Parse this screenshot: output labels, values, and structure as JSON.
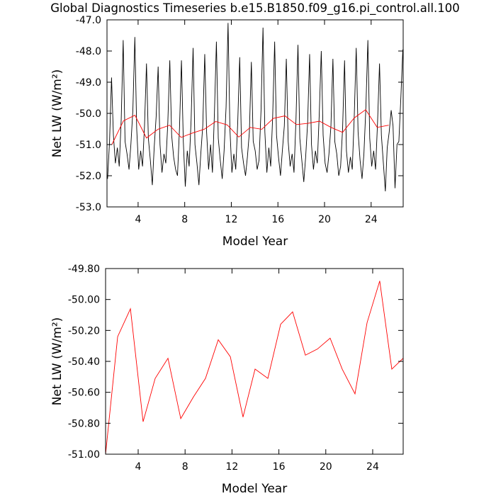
{
  "chart_data": [
    {
      "type": "line",
      "title": "Global Diagnostics Timeseries b.e15.B1850.f09_g16.pi_control.all.100",
      "xlabel": "Model Year",
      "ylabel": "Net LW (W/m²)",
      "xlim": [
        1.33,
        26.75
      ],
      "xticks": [
        4,
        8,
        12,
        16,
        20,
        24
      ],
      "ylim": [
        -53,
        -47
      ],
      "yticks": [
        {
          "value": -53,
          "label": "-53.0"
        },
        {
          "value": -52,
          "label": "-52.0"
        },
        {
          "value": -51,
          "label": "-51.0"
        },
        {
          "value": -50,
          "label": "-50.0"
        },
        {
          "value": -49,
          "label": "-49.0"
        },
        {
          "value": -48,
          "label": "-48.0"
        },
        {
          "value": -47,
          "label": "-47.0"
        }
      ],
      "series": [
        {
          "color": "#000000",
          "x": [
            1.38,
            1.55,
            1.72,
            1.88,
            2.05,
            2.22,
            2.38,
            2.55,
            2.72,
            2.88,
            3.05,
            3.22,
            3.38,
            3.55,
            3.72,
            3.88,
            4.05,
            4.22,
            4.38,
            4.55,
            4.72,
            4.88,
            5.05,
            5.22,
            5.38,
            5.55,
            5.72,
            5.88,
            6.05,
            6.22,
            6.38,
            6.55,
            6.72,
            6.88,
            7.05,
            7.22,
            7.38,
            7.55,
            7.72,
            7.88,
            8.05,
            8.22,
            8.38,
            8.55,
            8.72,
            8.88,
            9.05,
            9.22,
            9.38,
            9.55,
            9.72,
            9.88,
            10.05,
            10.22,
            10.38,
            10.55,
            10.72,
            10.88,
            11.05,
            11.22,
            11.38,
            11.55,
            11.72,
            11.88,
            12.05,
            12.22,
            12.38,
            12.55,
            12.72,
            12.88,
            13.05,
            13.22,
            13.38,
            13.55,
            13.72,
            13.88,
            14.05,
            14.22,
            14.38,
            14.55,
            14.72,
            14.88,
            15.05,
            15.22,
            15.38,
            15.55,
            15.72,
            15.88,
            16.05,
            16.22,
            16.38,
            16.55,
            16.72,
            16.88,
            17.05,
            17.22,
            17.38,
            17.55,
            17.72,
            17.88,
            18.05,
            18.22,
            18.38,
            18.55,
            18.72,
            18.88,
            19.05,
            19.22,
            19.38,
            19.55,
            19.72,
            19.88,
            20.05,
            20.22,
            20.38,
            20.55,
            20.72,
            20.88,
            21.05,
            21.22,
            21.38,
            21.55,
            21.72,
            21.88,
            22.05,
            22.22,
            22.38,
            22.55,
            22.72,
            22.88,
            23.05,
            23.22,
            23.38,
            23.55,
            23.72,
            23.88,
            24.05,
            24.22,
            24.38,
            24.55,
            24.72,
            24.88,
            25.05,
            25.22,
            25.38,
            25.55,
            25.72,
            25.88,
            26.05,
            26.22,
            26.38,
            26.55,
            26.72
          ],
          "values": [
            -52.1,
            -50.9,
            -48.85,
            -50.7,
            -51.6,
            -51.1,
            -51.7,
            -50.2,
            -47.65,
            -50.9,
            -51.3,
            -51.8,
            -51.0,
            -49.9,
            -47.55,
            -50.5,
            -51.8,
            -51.2,
            -51.7,
            -50.4,
            -48.4,
            -50.8,
            -51.5,
            -52.3,
            -51.1,
            -50.1,
            -48.5,
            -51.0,
            -51.9,
            -51.3,
            -51.6,
            -50.3,
            -48.3,
            -50.7,
            -51.4,
            -51.8,
            -52.0,
            -50.5,
            -48.3,
            -50.9,
            -52.35,
            -51.2,
            -51.7,
            -50.2,
            -47.9,
            -51.0,
            -51.6,
            -52.3,
            -51.3,
            -50.4,
            -48.1,
            -50.6,
            -51.8,
            -51.0,
            -51.9,
            -50.0,
            -47.7,
            -50.8,
            -51.5,
            -52.1,
            -51.2,
            -49.8,
            -47.1,
            -50.5,
            -51.9,
            -51.3,
            -51.8,
            -50.3,
            -48.2,
            -51.1,
            -51.6,
            -52.0,
            -51.4,
            -50.6,
            -48.35,
            -50.9,
            -51.2,
            -51.8,
            -51.5,
            -49.9,
            -47.25,
            -50.6,
            -51.9,
            -51.1,
            -51.7,
            -50.1,
            -47.7,
            -50.7,
            -51.4,
            -52.0,
            -51.2,
            -50.4,
            -48.25,
            -50.9,
            -51.7,
            -51.3,
            -51.9,
            -50.2,
            -47.8,
            -50.8,
            -51.5,
            -52.2,
            -51.4,
            -50.3,
            -48.1,
            -51.0,
            -51.8,
            -51.2,
            -51.6,
            -50.0,
            -48.0,
            -50.7,
            -51.6,
            -51.9,
            -51.3,
            -50.4,
            -48.25,
            -50.9,
            -51.3,
            -52.0,
            -51.7,
            -50.5,
            -48.3,
            -51.2,
            -51.9,
            -51.4,
            -51.8,
            -50.1,
            -47.9,
            -50.6,
            -51.5,
            -52.1,
            -51.3,
            -49.8,
            -47.65,
            -50.8,
            -51.7,
            -51.2,
            -51.8,
            -50.3,
            -48.4,
            -50.7,
            -51.6,
            -52.5,
            -51.1,
            -50.6,
            -49.9,
            -50.4,
            -52.4,
            -51.0,
            -50.9,
            -49.5,
            -47.95
          ]
        },
        {
          "color": "#ff0000",
          "x": [
            1.75,
            2.74,
            3.73,
            4.72,
            5.71,
            6.7,
            7.69,
            8.68,
            9.67,
            10.66,
            11.65,
            12.64,
            13.63,
            14.62,
            15.61,
            16.6,
            17.59,
            18.58,
            19.57,
            20.56,
            21.55,
            22.54,
            23.53,
            24.52,
            25.51
          ],
          "values": [
            -51.0,
            -50.24,
            -50.06,
            -50.79,
            -50.51,
            -50.38,
            -50.77,
            -50.63,
            -50.51,
            -50.26,
            -50.37,
            -50.76,
            -50.45,
            -50.51,
            -50.16,
            -50.08,
            -50.36,
            -50.32,
            -50.25,
            -50.45,
            -50.61,
            -50.15,
            -49.88,
            -50.45,
            -50.38
          ]
        }
      ]
    },
    {
      "type": "line",
      "xlabel": "Model Year",
      "ylabel": "Net LW (W/m²)",
      "xlim": [
        1.22,
        26.6
      ],
      "xticks": [
        4,
        8,
        12,
        16,
        20,
        24
      ],
      "ylim": [
        -51,
        -49.8
      ],
      "yticks": [
        {
          "value": -51,
          "label": "-51.00"
        },
        {
          "value": -50.8,
          "label": "-50.80"
        },
        {
          "value": -50.6,
          "label": "-50.60"
        },
        {
          "value": -50.4,
          "label": "-50.40"
        },
        {
          "value": -50.2,
          "label": "-50.20"
        },
        {
          "value": -50,
          "label": "-50.00"
        },
        {
          "value": -49.8,
          "label": "-49.80"
        }
      ],
      "series": [
        {
          "color": "#ff0000",
          "x": [
            1.22,
            2.25,
            3.34,
            4.42,
            5.45,
            6.54,
            7.63,
            8.71,
            9.74,
            10.83,
            11.86,
            12.94,
            13.97,
            15.06,
            16.15,
            17.17,
            18.26,
            19.29,
            20.37,
            21.4,
            22.49,
            23.52,
            24.6,
            25.63,
            26.6
          ],
          "values": [
            -51.0,
            -50.24,
            -50.06,
            -50.79,
            -50.51,
            -50.38,
            -50.77,
            -50.63,
            -50.51,
            -50.26,
            -50.37,
            -50.76,
            -50.45,
            -50.51,
            -50.16,
            -50.08,
            -50.36,
            -50.32,
            -50.25,
            -50.45,
            -50.61,
            -50.15,
            -49.88,
            -50.45,
            -50.38
          ]
        }
      ]
    }
  ]
}
